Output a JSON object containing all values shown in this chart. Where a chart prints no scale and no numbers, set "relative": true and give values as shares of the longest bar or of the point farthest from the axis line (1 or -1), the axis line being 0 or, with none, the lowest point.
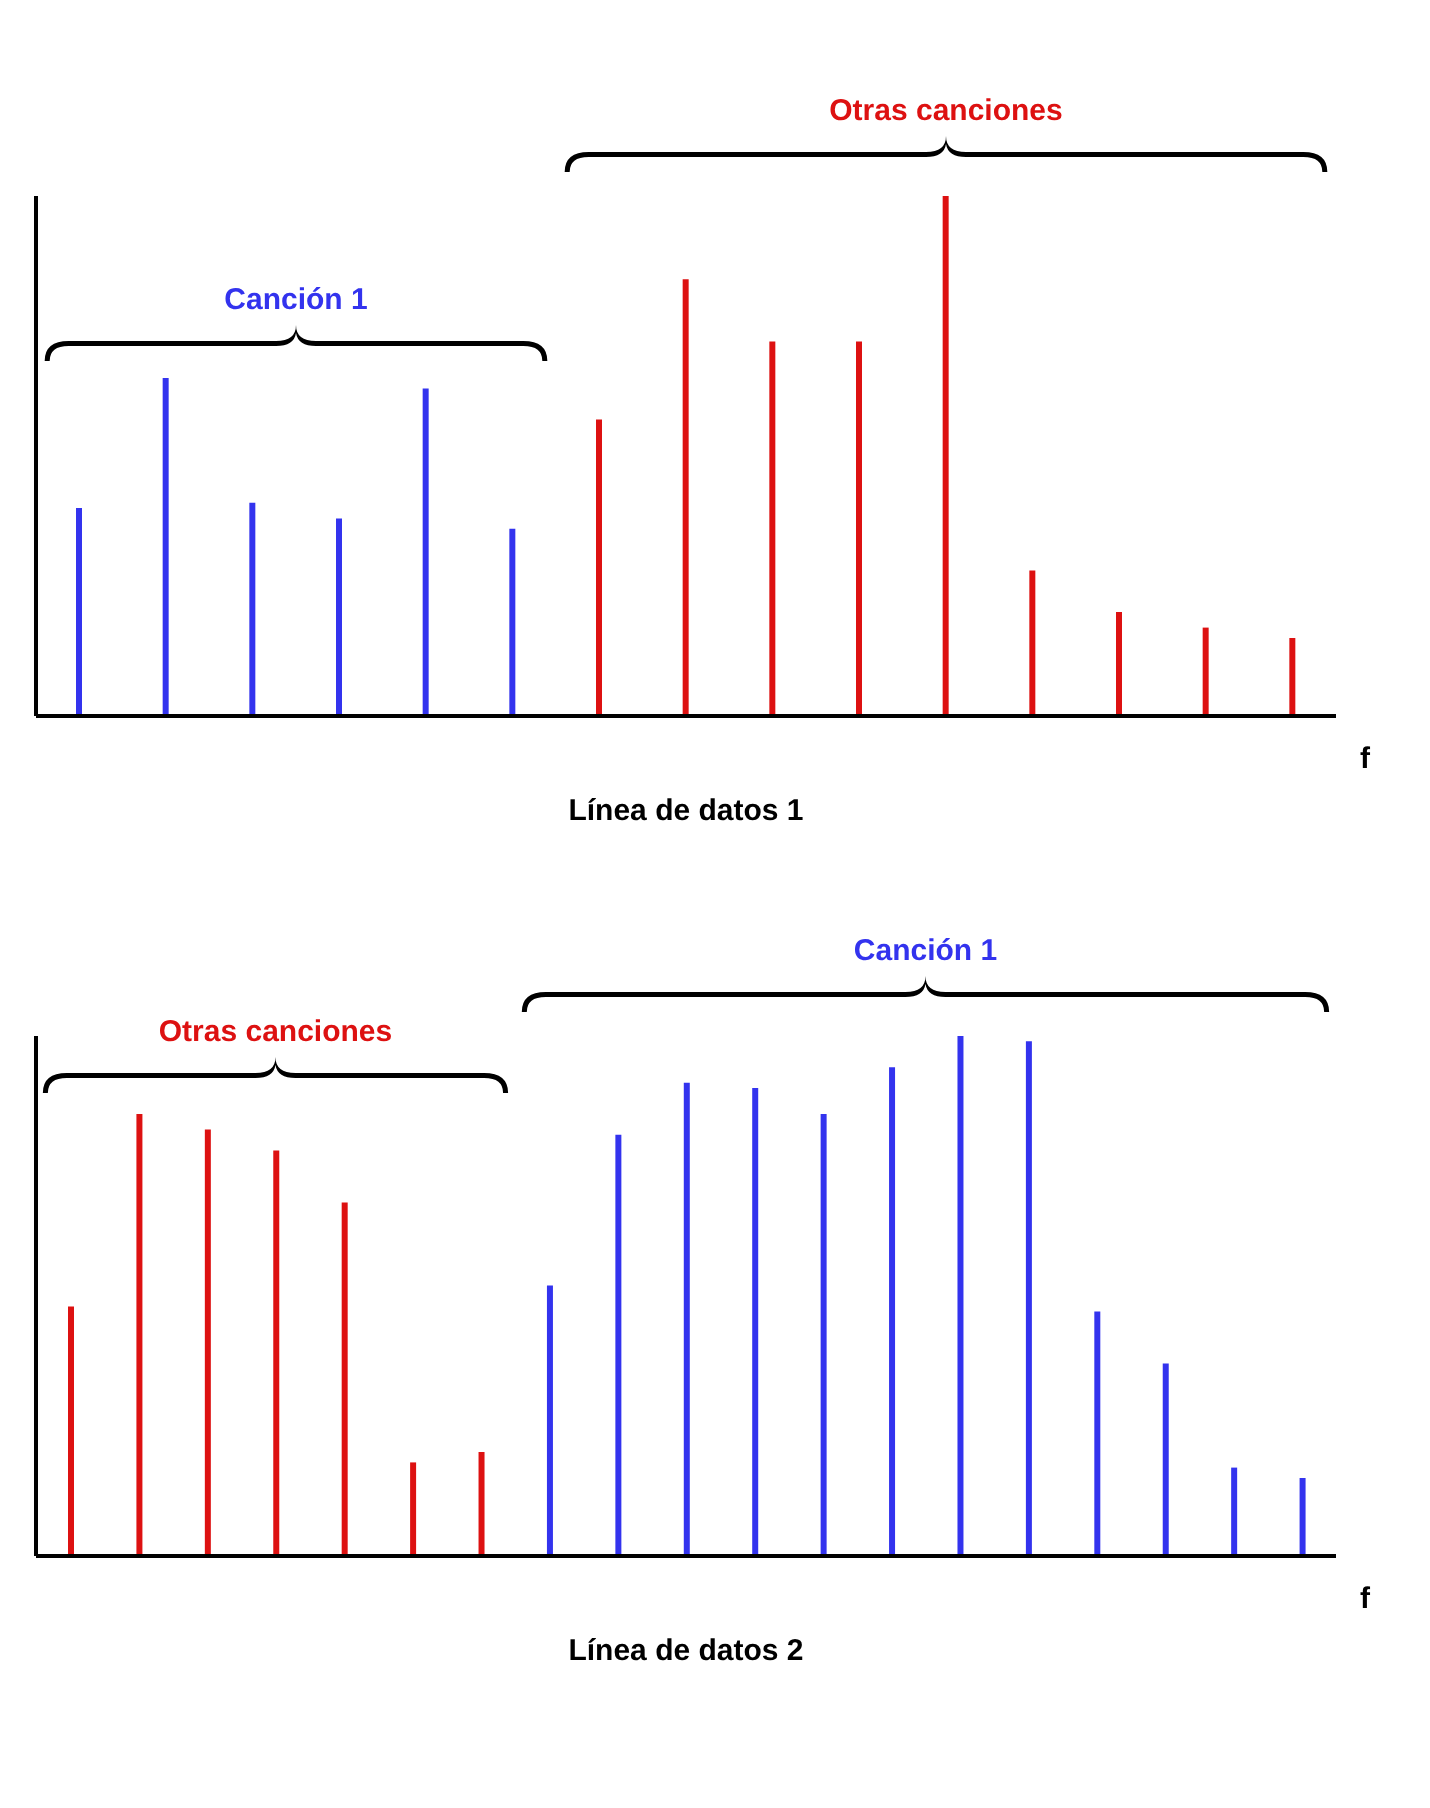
{
  "chart_data": [
    {
      "type": "bar",
      "title": "Línea de datos 1",
      "xlabel": "f",
      "relative": true,
      "grid": false,
      "legend": false,
      "annotations": [
        "Canción 1",
        "Otras canciones"
      ],
      "categories": [
        null,
        null,
        null,
        null,
        null,
        null,
        null,
        null,
        null,
        null,
        null,
        null,
        null,
        null,
        null
      ],
      "values": [
        0.4,
        0.65,
        0.41,
        0.38,
        0.63,
        0.36,
        0.57,
        0.84,
        0.72,
        0.72,
        1,
        0.28,
        0.2,
        0.17,
        0.15
      ],
      "colors": [
        "#3333ee",
        "#3333ee",
        "#3333ee",
        "#3333ee",
        "#3333ee",
        "#3333ee",
        "#dd1111",
        "#dd1111",
        "#dd1111",
        "#dd1111",
        "#dd1111",
        "#dd1111",
        "#dd1111",
        "#dd1111",
        "#dd1111"
      ]
    },
    {
      "type": "bar",
      "title": "Línea de datos 2",
      "xlabel": "f",
      "relative": true,
      "grid": false,
      "legend": false,
      "annotations": [
        "Otras canciones",
        "Canción 1"
      ],
      "categories": [
        null,
        null,
        null,
        null,
        null,
        null,
        null,
        null,
        null,
        null,
        null,
        null,
        null,
        null,
        null,
        null,
        null,
        null,
        null
      ],
      "values": [
        0.48,
        0.85,
        0.82,
        0.78,
        0.68,
        0.18,
        0.2,
        0.52,
        0.81,
        0.91,
        0.9,
        0.85,
        0.94,
        1,
        0.99,
        0.47,
        0.37,
        0.17,
        0.15
      ],
      "colors": [
        "#dd1111",
        "#dd1111",
        "#dd1111",
        "#dd1111",
        "#dd1111",
        "#dd1111",
        "#dd1111",
        "#3333ee",
        "#3333ee",
        "#3333ee",
        "#3333ee",
        "#3333ee",
        "#3333ee",
        "#3333ee",
        "#3333ee",
        "#3333ee",
        "#3333ee",
        "#3333ee",
        "#3333ee"
      ]
    }
  ]
}
